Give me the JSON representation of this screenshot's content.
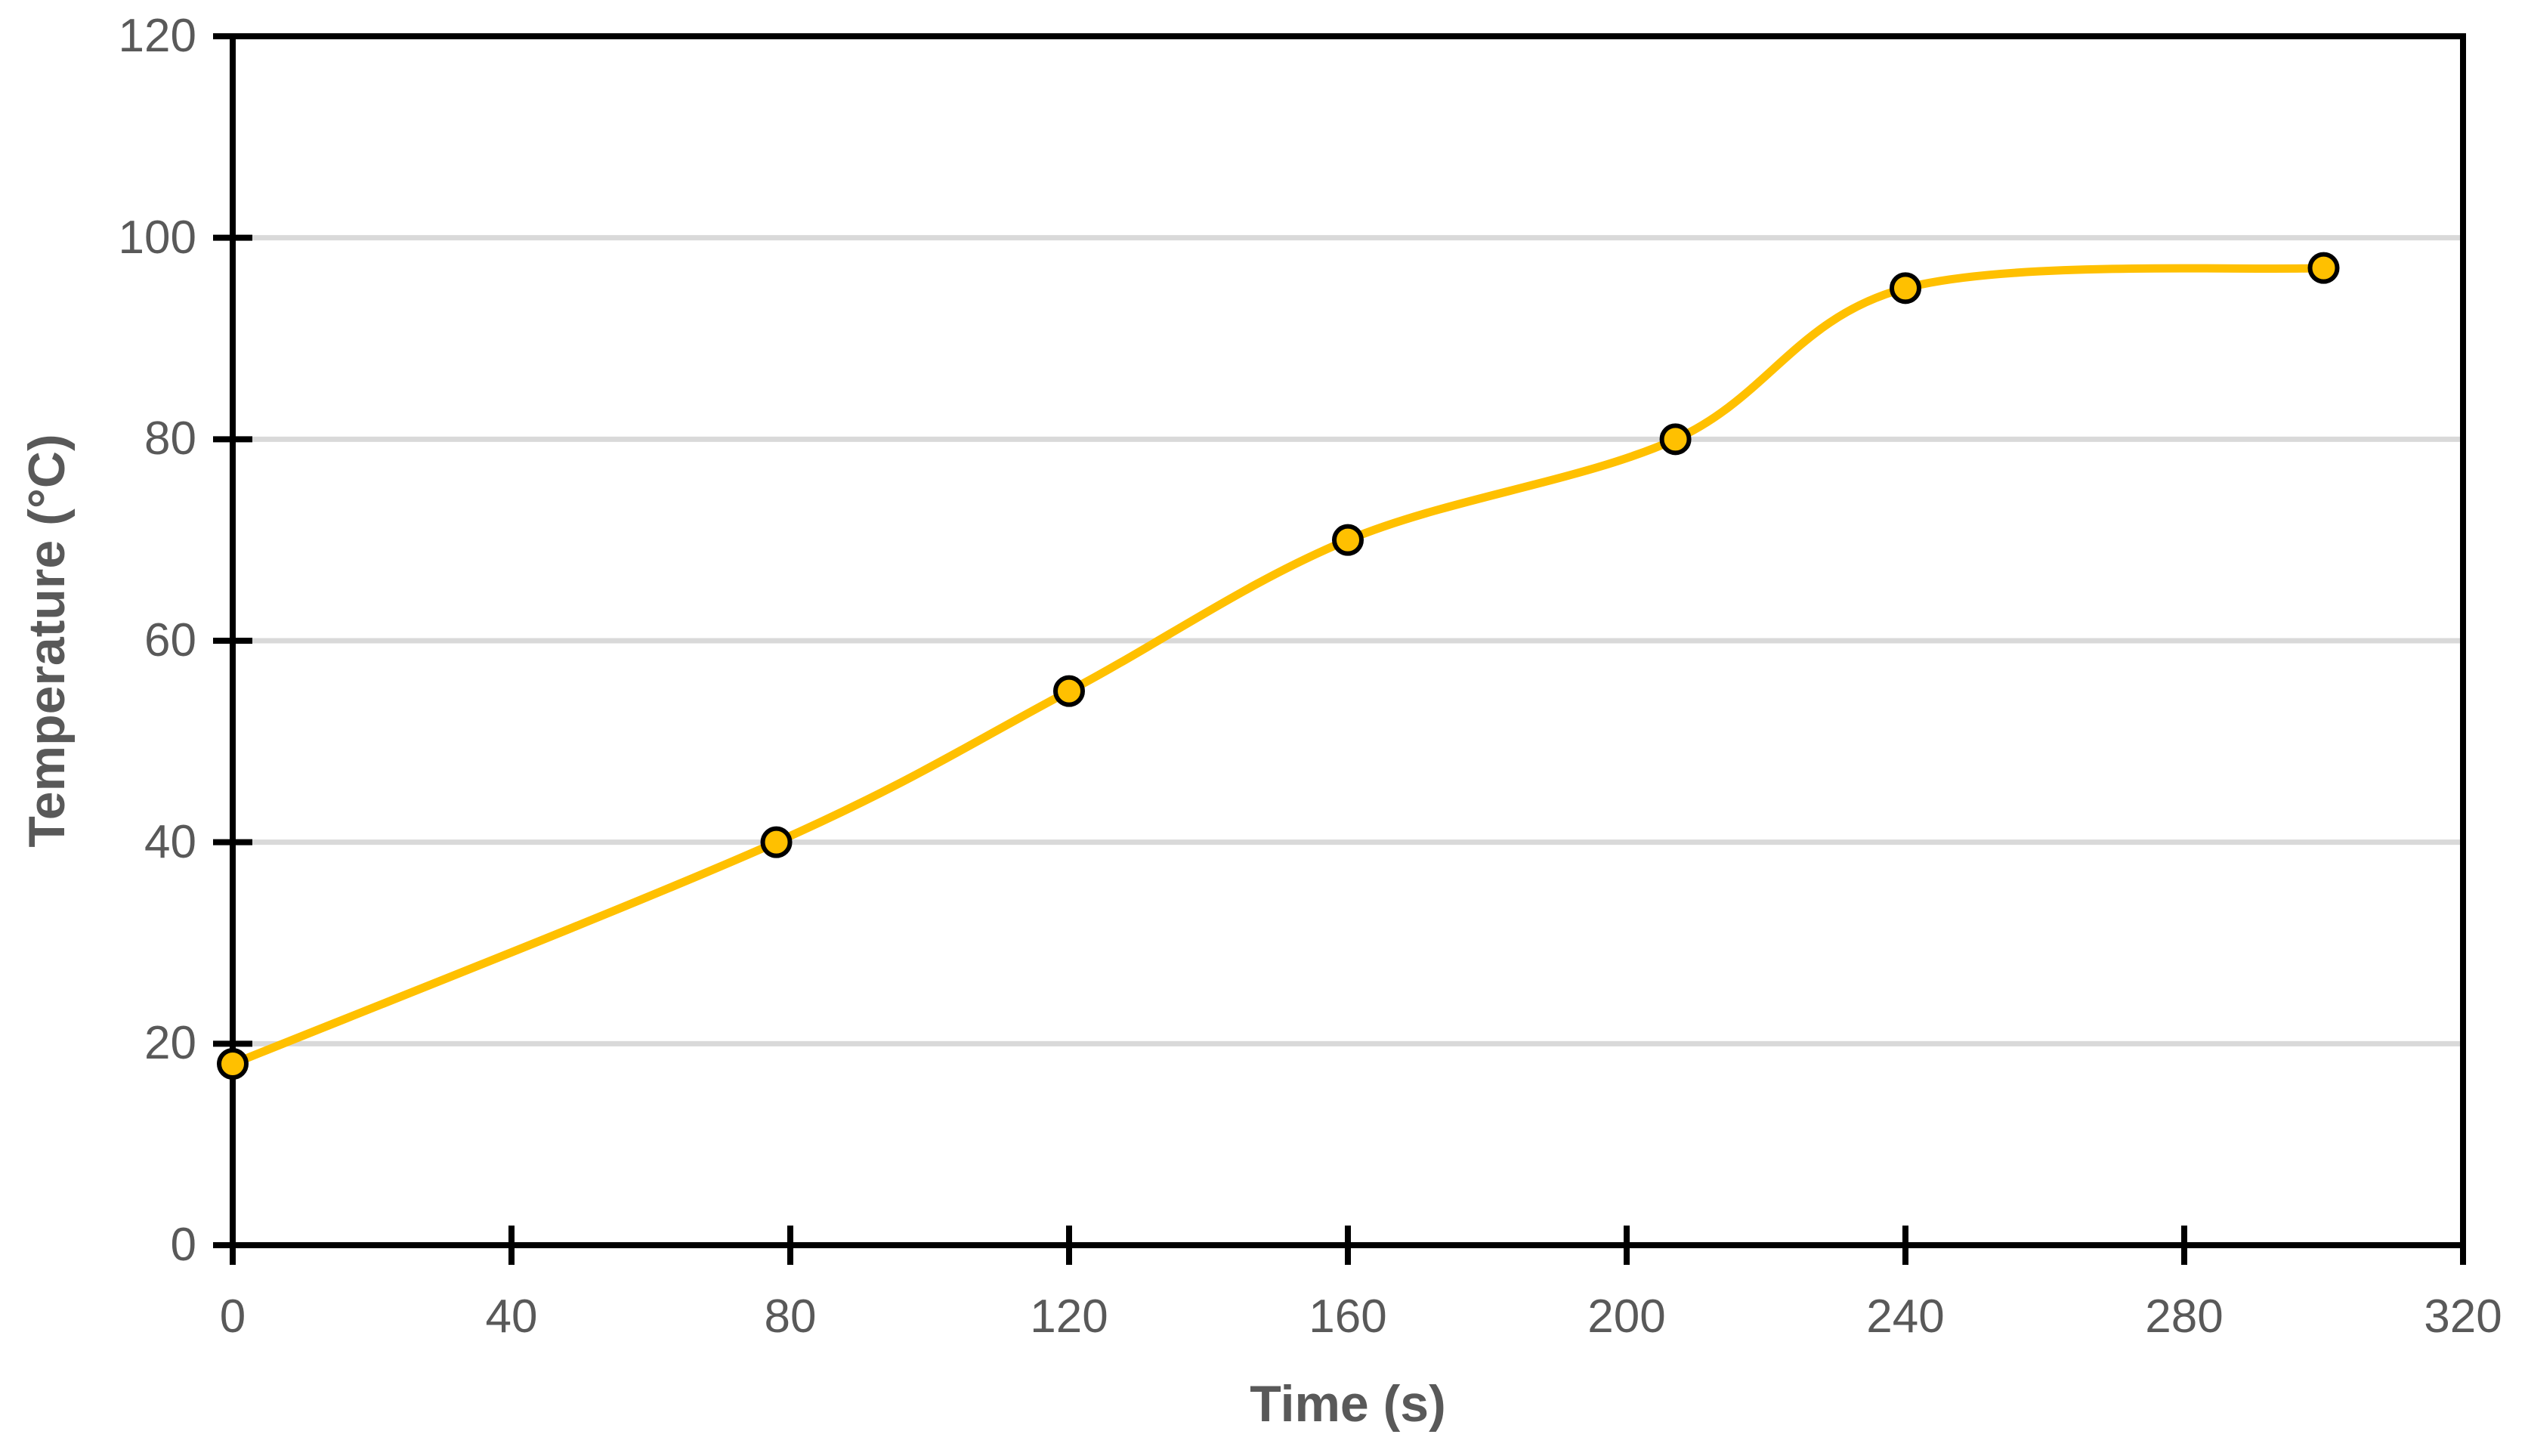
{
  "chart_data": {
    "type": "line",
    "subtype": "scatter-with-smooth-lines-and-markers",
    "title": "",
    "xlabel": "Time (s)",
    "ylabel": "Temperature (°C)",
    "x": [
      0,
      78,
      120,
      160,
      207,
      240,
      300
    ],
    "y": [
      18,
      40,
      55,
      70,
      80,
      95,
      97
    ],
    "series_name": "Temperature",
    "xlim": [
      0,
      320
    ],
    "ylim": [
      0,
      120
    ],
    "xticks": [
      0,
      40,
      80,
      120,
      160,
      200,
      240,
      280,
      320
    ],
    "yticks": [
      0,
      20,
      40,
      60,
      80,
      100,
      120
    ],
    "grid": "horizontal-major-only",
    "legend": "none",
    "tick_style": "cross",
    "plot_border": true,
    "colors": {
      "line": "#FFC000",
      "marker_fill": "#FFC000",
      "marker_stroke": "#000000",
      "gridline": "#D9D9D9",
      "axis": "#000000",
      "tick_label": "#595959",
      "axis_title": "#595959",
      "background": "#FFFFFF"
    }
  }
}
